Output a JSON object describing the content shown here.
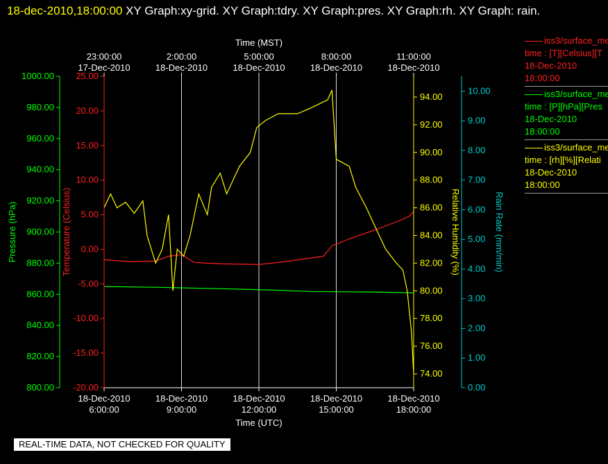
{
  "header": {
    "date": "18-dec-2010,18:00:00",
    "title": "XY Graph:xy-grid.  XY Graph:tdry.  XY Graph:pres.  XY Graph:rh.  XY Graph: rain."
  },
  "legend": [
    {
      "line1": "iss3/surface_me",
      "line2": "time : [T][Celsius][T",
      "line3": "18-Dec-2010",
      "line4": "18:00:00",
      "color": "#ff2020"
    },
    {
      "line1": "iss3/surface_me",
      "line2": "time : [P][hPa][Pres",
      "line3": "18-Dec-2010",
      "line4": "18:00:00",
      "color": "#00ff00"
    },
    {
      "line1": "iss3/surface_me",
      "line2": "time : [rh][%][Relati",
      "line3": "18-Dec-2010",
      "line4": "18:00:00",
      "color": "#ffff00"
    }
  ],
  "footer": "REAL-TIME DATA, NOT CHECKED FOR QUALITY",
  "chart_data": {
    "type": "line",
    "x_range": [
      "2010-12-18T06:00",
      "2010-12-18T18:00"
    ],
    "x_bottom_label": "Time (UTC)",
    "x_top_label": "Time (MST)",
    "x_ticks": [
      {
        "utc": "2010-12-18T06:00",
        "bottom": [
          "18-Dec-2010",
          "6:00:00"
        ],
        "top": [
          "23:00:00",
          "17-Dec-2010"
        ]
      },
      {
        "utc": "2010-12-18T09:00",
        "bottom": [
          "18-Dec-2010",
          "9:00:00"
        ],
        "top": [
          "2:00:00",
          "18-Dec-2010"
        ]
      },
      {
        "utc": "2010-12-18T12:00",
        "bottom": [
          "18-Dec-2010",
          "12:00:00"
        ],
        "top": [
          "5:00:00",
          "18-Dec-2010"
        ]
      },
      {
        "utc": "2010-12-18T15:00",
        "bottom": [
          "18-Dec-2010",
          "15:00:00"
        ],
        "top": [
          "8:00:00",
          "18-Dec-2010"
        ]
      },
      {
        "utc": "2010-12-18T18:00",
        "bottom": [
          "18-Dec-2010",
          "18:00:00"
        ],
        "top": [
          "11:00:00",
          "18-Dec-2010"
        ]
      }
    ],
    "grid": true,
    "axes": {
      "pressure": {
        "label": "Pressure (hPa)",
        "range": [
          800,
          1000
        ],
        "ticks": [
          "800.00",
          "820.00",
          "840.00",
          "860.00",
          "880.00",
          "900.00",
          "920.00",
          "940.00",
          "960.00",
          "980.00",
          "1000.00"
        ],
        "color": "#00ff00"
      },
      "temperature": {
        "label": "Temperature (Celsius)",
        "range": [
          -20,
          25
        ],
        "ticks": [
          "-20.00",
          "-15.00",
          "-10.00",
          "-5.00",
          "0.00",
          "5.00",
          "10.00",
          "15.00",
          "20.00",
          "25.00"
        ],
        "color": "#ff2020"
      },
      "rh": {
        "label": "Relative Humidity (%)",
        "range": [
          73,
          95.5
        ],
        "ticks": [
          "74.00",
          "76.00",
          "78.00",
          "80.00",
          "82.00",
          "84.00",
          "86.00",
          "88.00",
          "90.00",
          "92.00",
          "94.00"
        ],
        "color": "#ffff00"
      },
      "rain": {
        "label": "Rain Rate (mm/min)",
        "range": [
          0,
          10.5
        ],
        "ticks": [
          "0.00",
          "1.00",
          "2.00",
          "3.00",
          "4.00",
          "5.00",
          "6.00",
          "7.00",
          "8.00",
          "9.00",
          "10.00"
        ],
        "color": "#00cccc"
      }
    },
    "series": [
      {
        "axis": "temperature",
        "color": "#ff2020",
        "points": [
          [
            "2010-12-18T06:00",
            -1.5
          ],
          [
            "2010-12-18T07:00",
            -1.8
          ],
          [
            "2010-12-18T08:00",
            -1.7
          ],
          [
            "2010-12-18T08:30",
            -1.0
          ],
          [
            "2010-12-18T09:00",
            -0.8
          ],
          [
            "2010-12-18T09:30",
            -1.9
          ],
          [
            "2010-12-18T10:30",
            -2.1
          ],
          [
            "2010-12-18T12:00",
            -2.2
          ],
          [
            "2010-12-18T13:00",
            -1.8
          ],
          [
            "2010-12-18T13:45",
            -1.4
          ],
          [
            "2010-12-18T14:30",
            -1.0
          ],
          [
            "2010-12-18T14:50",
            0.5
          ],
          [
            "2010-12-18T15:30",
            1.5
          ],
          [
            "2010-12-18T16:30",
            2.8
          ],
          [
            "2010-12-18T17:30",
            4.2
          ],
          [
            "2010-12-18T17:50",
            4.8
          ],
          [
            "2010-12-18T18:00",
            5.5
          ]
        ]
      },
      {
        "axis": "pressure",
        "color": "#00ff00",
        "points": [
          [
            "2010-12-18T06:00",
            865.0
          ],
          [
            "2010-12-18T08:00",
            864.5
          ],
          [
            "2010-12-18T10:00",
            863.8
          ],
          [
            "2010-12-18T12:00",
            863.0
          ],
          [
            "2010-12-18T14:00",
            861.8
          ],
          [
            "2010-12-18T16:00",
            861.5
          ],
          [
            "2010-12-18T18:00",
            861.0
          ]
        ]
      },
      {
        "axis": "rh",
        "color": "#ffff00",
        "points": [
          [
            "2010-12-18T06:00",
            86.0
          ],
          [
            "2010-12-18T06:15",
            87.0
          ],
          [
            "2010-12-18T06:30",
            86.0
          ],
          [
            "2010-12-18T06:50",
            86.4
          ],
          [
            "2010-12-18T07:10",
            85.6
          ],
          [
            "2010-12-18T07:30",
            86.5
          ],
          [
            "2010-12-18T07:40",
            84.0
          ],
          [
            "2010-12-18T08:00",
            82.0
          ],
          [
            "2010-12-18T08:15",
            83.0
          ],
          [
            "2010-12-18T08:30",
            85.5
          ],
          [
            "2010-12-18T08:40",
            80.0
          ],
          [
            "2010-12-18T08:50",
            83.0
          ],
          [
            "2010-12-18T09:05",
            82.5
          ],
          [
            "2010-12-18T09:20",
            84.0
          ],
          [
            "2010-12-18T09:40",
            87.0
          ],
          [
            "2010-12-18T10:00",
            85.5
          ],
          [
            "2010-12-18T10:10",
            87.5
          ],
          [
            "2010-12-18T10:30",
            88.5
          ],
          [
            "2010-12-18T10:45",
            87.0
          ],
          [
            "2010-12-18T11:00",
            88.0
          ],
          [
            "2010-12-18T11:15",
            89.0
          ],
          [
            "2010-12-18T11:40",
            90.0
          ],
          [
            "2010-12-18T11:55",
            91.8
          ],
          [
            "2010-12-18T12:15",
            92.3
          ],
          [
            "2010-12-18T12:45",
            92.8
          ],
          [
            "2010-12-18T13:30",
            92.8
          ],
          [
            "2010-12-18T14:00",
            93.2
          ],
          [
            "2010-12-18T14:40",
            93.8
          ],
          [
            "2010-12-18T14:50",
            94.5
          ],
          [
            "2010-12-18T15:00",
            89.5
          ],
          [
            "2010-12-18T15:30",
            89.0
          ],
          [
            "2010-12-18T15:45",
            87.5
          ],
          [
            "2010-12-18T16:10",
            86.0
          ],
          [
            "2010-12-18T16:40",
            84.0
          ],
          [
            "2010-12-18T16:55",
            83.0
          ],
          [
            "2010-12-18T17:20",
            82.0
          ],
          [
            "2010-12-18T17:35",
            81.5
          ],
          [
            "2010-12-18T17:45",
            80.0
          ],
          [
            "2010-12-18T17:55",
            77.0
          ],
          [
            "2010-12-18T18:00",
            74.0
          ]
        ]
      }
    ]
  }
}
